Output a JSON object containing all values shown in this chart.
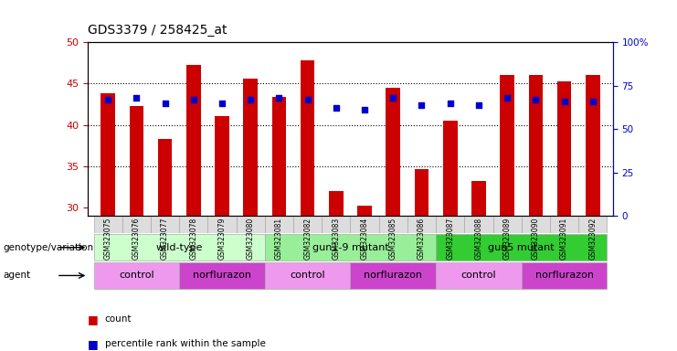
{
  "title": "GDS3379 / 258425_at",
  "samples": [
    "GSM323075",
    "GSM323076",
    "GSM323077",
    "GSM323078",
    "GSM323079",
    "GSM323080",
    "GSM323081",
    "GSM323082",
    "GSM323083",
    "GSM323084",
    "GSM323085",
    "GSM323086",
    "GSM323087",
    "GSM323088",
    "GSM323089",
    "GSM323090",
    "GSM323091",
    "GSM323092"
  ],
  "counts": [
    43.8,
    42.3,
    38.3,
    47.3,
    41.1,
    45.6,
    43.4,
    47.8,
    32.0,
    30.2,
    44.5,
    34.6,
    40.5,
    33.2,
    46.0,
    46.0,
    45.3,
    46.0
  ],
  "percentile_right": [
    67,
    68,
    65,
    67,
    65,
    67,
    68,
    67,
    62,
    61,
    68,
    64,
    65,
    64,
    68,
    67,
    66,
    66
  ],
  "ylim_left": [
    29,
    50
  ],
  "yticks_left": [
    30,
    35,
    40,
    45,
    50
  ],
  "ylim_right": [
    0,
    100
  ],
  "yticks_right": [
    0,
    25,
    50,
    75,
    100
  ],
  "bar_color": "#cc0000",
  "dot_color": "#0000cc",
  "bar_width": 0.5,
  "genotype_groups": [
    {
      "label": "wild-type",
      "start": 0,
      "end": 6,
      "color": "#ccffcc"
    },
    {
      "label": "gun1-9 mutant",
      "start": 6,
      "end": 12,
      "color": "#99ee99"
    },
    {
      "label": "gun5 mutant",
      "start": 12,
      "end": 18,
      "color": "#33cc33"
    }
  ],
  "agent_groups": [
    {
      "label": "control",
      "start": 0,
      "end": 3,
      "color": "#ee99ee"
    },
    {
      "label": "norflurazon",
      "start": 3,
      "end": 6,
      "color": "#cc44cc"
    },
    {
      "label": "control",
      "start": 6,
      "end": 9,
      "color": "#ee99ee"
    },
    {
      "label": "norflurazon",
      "start": 9,
      "end": 12,
      "color": "#cc44cc"
    },
    {
      "label": "control",
      "start": 12,
      "end": 15,
      "color": "#ee99ee"
    },
    {
      "label": "norflurazon",
      "start": 15,
      "end": 18,
      "color": "#cc44cc"
    }
  ],
  "axis_color_left": "#cc0000",
  "axis_color_right": "#0000cc",
  "label_left_genotype": "genotype/variation",
  "label_left_agent": "agent",
  "legend_items": [
    {
      "color": "#cc0000",
      "marker": "s",
      "label": "count"
    },
    {
      "color": "#0000cc",
      "marker": "s",
      "label": "percentile rank within the sample"
    }
  ]
}
